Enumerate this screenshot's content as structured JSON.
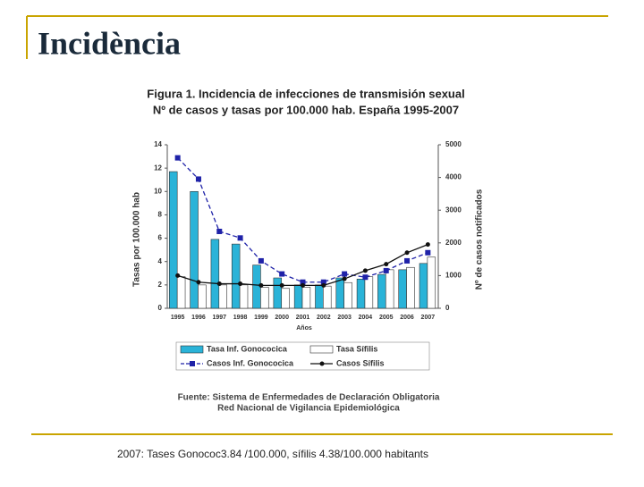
{
  "slide_title": "Incidència",
  "chart_data": {
    "type": "combo",
    "title": "Figura 1. Incidencia de infecciones de transmisión sexual",
    "subtitle": "Nº de casos y tasas por 100.000 hab.  España 1995-2007",
    "x_label": "Años",
    "y_label": "Tasas por 100.000 hab",
    "y2_label": "Nº de casos notificados",
    "categories": [
      "1995",
      "1996",
      "1997",
      "1998",
      "1999",
      "2000",
      "2001",
      "2002",
      "2003",
      "2004",
      "2005",
      "2006",
      "2007"
    ],
    "ylim": [
      0,
      14
    ],
    "yticks": [
      0,
      2,
      4,
      6,
      8,
      10,
      12,
      14
    ],
    "y2lim": [
      0,
      5000
    ],
    "y2ticks": [
      0,
      1000,
      2000,
      3000,
      4000,
      5000
    ],
    "series": [
      {
        "name": "Tasa Inf. Gonococica",
        "type": "bar",
        "color": "#2ab3d8",
        "values": [
          11.7,
          10.0,
          5.9,
          5.5,
          3.7,
          2.6,
          2.0,
          2.0,
          2.6,
          2.5,
          2.9,
          3.3,
          3.84
        ]
      },
      {
        "name": "Tasa Sífilis",
        "type": "bar",
        "color": "#ffffff",
        "values": [
          2.7,
          2.0,
          2.0,
          2.0,
          1.8,
          1.7,
          1.8,
          1.9,
          2.2,
          2.7,
          3.3,
          3.5,
          4.38
        ]
      },
      {
        "name": "Casos Inf. Gonococica",
        "type": "line",
        "axis": "y2",
        "color": "#1f22a8",
        "marker": "square",
        "dashed": true,
        "values": [
          4600,
          3950,
          2350,
          2150,
          1450,
          1050,
          800,
          800,
          1050,
          950,
          1150,
          1450,
          1700
        ]
      },
      {
        "name": "Casos Sífilis",
        "type": "line",
        "axis": "y2",
        "color": "#111111",
        "marker": "circle",
        "dashed": false,
        "values": [
          1000,
          800,
          750,
          750,
          700,
          700,
          700,
          700,
          900,
          1150,
          1350,
          1700,
          1950
        ]
      }
    ],
    "source": [
      "Fuente: Sistema de Enfermedades de Declaración Obligatoria",
      "Red Nacional de Vigilancia Epidemiológica"
    ]
  },
  "footer": "2007: Tases Gonococ3.84 /100.000, sífilis  4.38/100.000 habitants"
}
